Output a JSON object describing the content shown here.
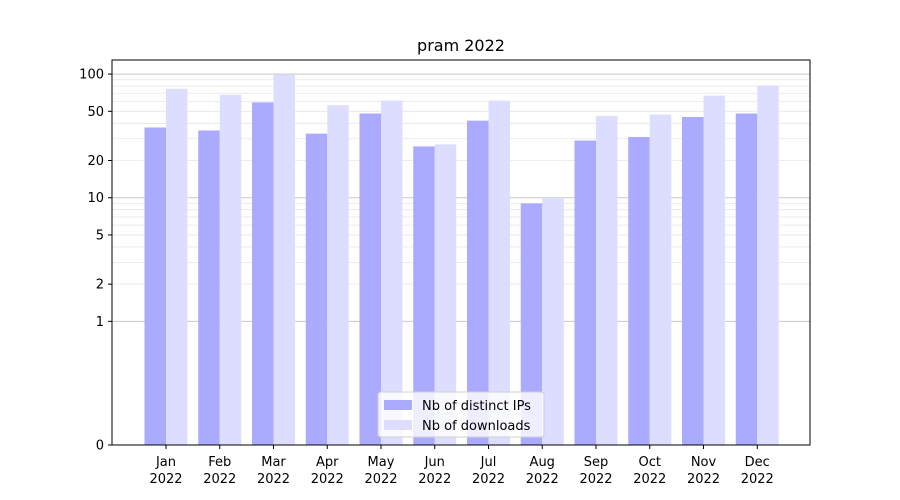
{
  "chart_data": {
    "type": "bar",
    "title": "pram 2022",
    "xlabel": "",
    "ylabel": "",
    "yscale": "symlog",
    "ylim": [
      0,
      130
    ],
    "yticks": [
      {
        "value": 0,
        "label": "0"
      },
      {
        "value": 1,
        "label": "1"
      },
      {
        "value": 2,
        "label": "2"
      },
      {
        "value": 5,
        "label": "5"
      },
      {
        "value": 10,
        "label": "10"
      },
      {
        "value": 20,
        "label": "20"
      },
      {
        "value": 50,
        "label": "50"
      },
      {
        "value": 100,
        "label": "100"
      }
    ],
    "categories": [
      {
        "month": "Jan",
        "year": "2022"
      },
      {
        "month": "Feb",
        "year": "2022"
      },
      {
        "month": "Mar",
        "year": "2022"
      },
      {
        "month": "Apr",
        "year": "2022"
      },
      {
        "month": "May",
        "year": "2022"
      },
      {
        "month": "Jun",
        "year": "2022"
      },
      {
        "month": "Jul",
        "year": "2022"
      },
      {
        "month": "Aug",
        "year": "2022"
      },
      {
        "month": "Sep",
        "year": "2022"
      },
      {
        "month": "Oct",
        "year": "2022"
      },
      {
        "month": "Nov",
        "year": "2022"
      },
      {
        "month": "Dec",
        "year": "2022"
      }
    ],
    "series": [
      {
        "name": "Nb of distinct IPs",
        "color": "#aaaaff",
        "values": [
          37,
          35,
          59,
          33,
          48,
          26,
          42,
          9,
          29,
          31,
          45,
          48
        ]
      },
      {
        "name": "Nb of downloads",
        "color": "#ddddff",
        "values": [
          76,
          68,
          99,
          56,
          61,
          27,
          61,
          10,
          46,
          47,
          67,
          81
        ]
      }
    ],
    "grid": true,
    "legend": "bottom-center"
  }
}
